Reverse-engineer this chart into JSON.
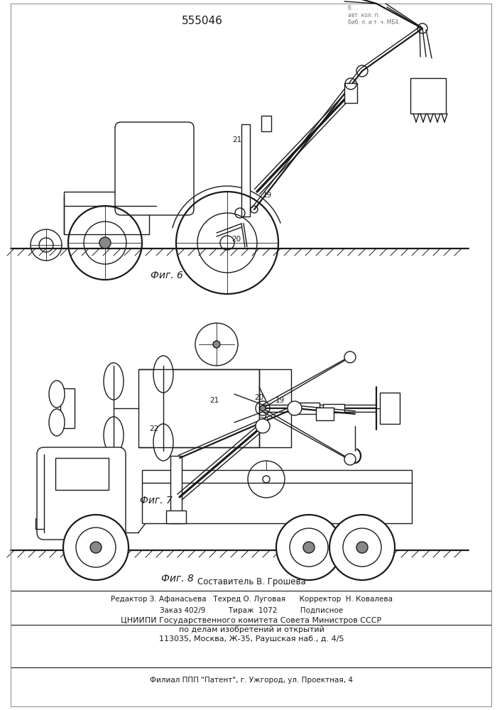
{
  "patent_number": "555046",
  "bg_color": "#ffffff",
  "line_color": "#1a1a1a",
  "fig6_label": "Фиг. 6",
  "fig7_label": "Фиг. 7",
  "fig8_label": "Фиг. 8",
  "footer_lines": [
    "Составитель В. Грошева",
    "Редактор З. Афанасьева   Техред О. Луговая      Корректор  Н. Ковалева",
    "Заказ 402/9          Тираж  1072          Подписное",
    "ЦНИИПИ Государственного комитета Совета Министров СССР",
    "по делам изобретений и открытий",
    "113035, Москва, Ж-35, Раушская наб., д. 4/5",
    "Филиал ППП \"Патент\", г. Ужгород, ул. Проектная, 4"
  ]
}
